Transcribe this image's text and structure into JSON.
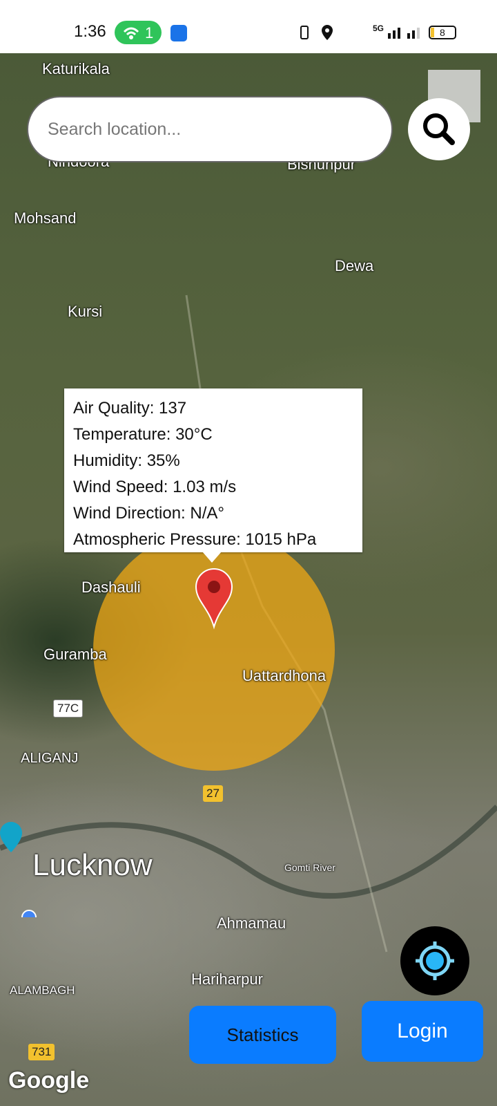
{
  "status_bar": {
    "time": "1:36",
    "hotspot_count": "1",
    "network": "5G",
    "battery": "8"
  },
  "search": {
    "placeholder": "Search location..."
  },
  "map_labels": [
    "Katurikala",
    "Nindoora",
    "Bishunpur",
    "Mohsand",
    "Dewa",
    "Kursi",
    "Dashauli",
    "Guramba",
    "Uattardhona",
    "ALIGANJ",
    "Lucknow",
    "Gomti River",
    "Ahmamau",
    "Hariharpur",
    "ALAMBAGH"
  ],
  "road_signs": [
    "77C",
    "27",
    "731"
  ],
  "info_window": {
    "lines": [
      "Air Quality: 137",
      "Temperature: 30°C",
      "Humidity: 35%",
      "Wind Speed: 1.03 m/s",
      "Wind Direction: N/A°",
      "Atmospheric Pressure: 1015 hPa"
    ]
  },
  "buttons": {
    "statistics": "Statistics",
    "login": "Login"
  },
  "map_attribution": "Google"
}
